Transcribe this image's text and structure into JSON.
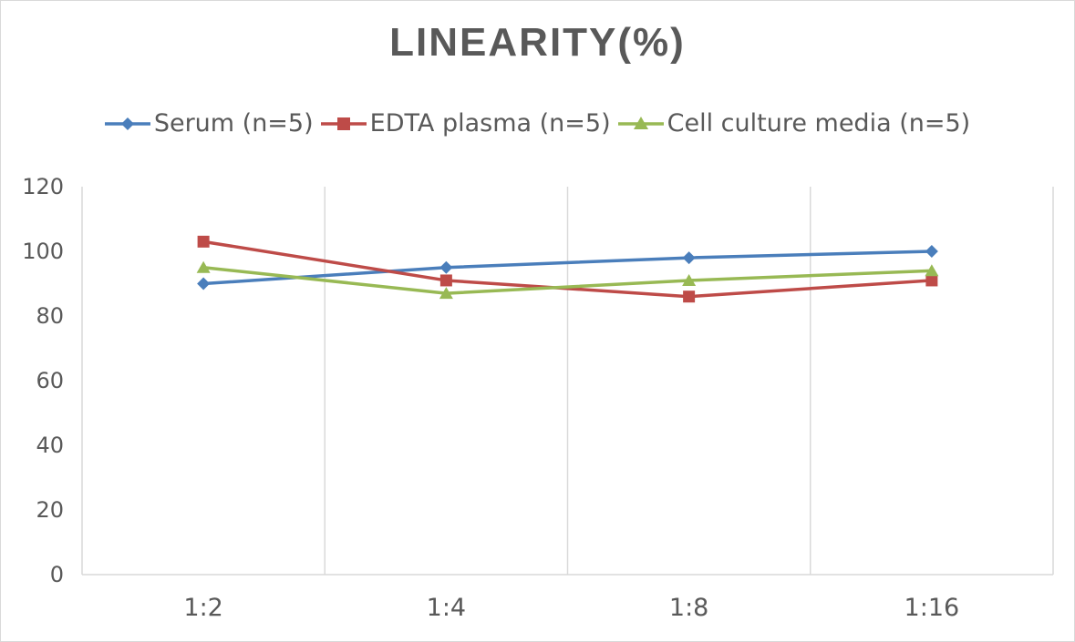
{
  "chart_data": {
    "type": "line",
    "title": "LINEARITY(%)",
    "xlabel": "",
    "ylabel": "",
    "categories": [
      "1:2",
      "1:4",
      "1:8",
      "1:16"
    ],
    "ylim": [
      0,
      120
    ],
    "yticks": [
      0,
      20,
      40,
      60,
      80,
      100,
      120
    ],
    "grid": "vertical",
    "legend_position": "top",
    "series": [
      {
        "name": "Serum (n=5)",
        "values": [
          90,
          95,
          98,
          100
        ],
        "color": "#4a7ebb",
        "marker": "diamond"
      },
      {
        "name": "EDTA plasma (n=5)",
        "values": [
          103,
          91,
          86,
          91
        ],
        "color": "#be4b48",
        "marker": "square"
      },
      {
        "name": "Cell culture media (n=5)",
        "values": [
          95,
          87,
          91,
          94
        ],
        "color": "#98b954",
        "marker": "triangle"
      }
    ]
  }
}
